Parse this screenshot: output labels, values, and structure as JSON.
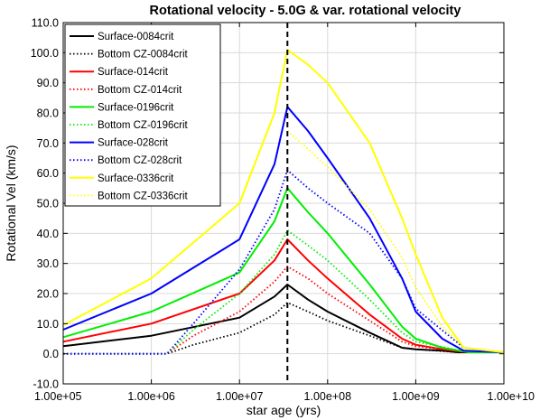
{
  "chart_data": {
    "type": "line",
    "title": "Rotational velocity - 5.0G & var. rotational velocity",
    "xlabel": "star age (yrs)",
    "ylabel": "Rotational Vel (km/s)",
    "x_scale": "log",
    "xlim": [
      100000,
      10000000000
    ],
    "ylim": [
      -10,
      110
    ],
    "x_ticks": [
      100000,
      1000000,
      10000000,
      100000000,
      1000000000,
      10000000000
    ],
    "x_tick_labels": [
      "1.00e+05",
      "1.00e+06",
      "1.00e+07",
      "1.00e+08",
      "1.00e+09",
      "1.00e+10"
    ],
    "y_ticks": [
      -10,
      0,
      10,
      20,
      30,
      40,
      50,
      60,
      70,
      80,
      90,
      100,
      110
    ],
    "y_tick_labels": [
      "-10.0",
      "0.0",
      "10.0",
      "20.0",
      "30.0",
      "40.0",
      "50.0",
      "60.0",
      "70.0",
      "80.0",
      "90.0",
      "100.0",
      "110.0"
    ],
    "grid": true,
    "legend_position": "top-left",
    "vline": {
      "x": 35000000,
      "style": "dashed",
      "color": "#000000"
    },
    "series": [
      {
        "name": "Surface-0084crit",
        "color": "#000000",
        "style": "solid",
        "x": [
          100000,
          1000000,
          10000000,
          25000000,
          35000000,
          60000000,
          100000000,
          300000000,
          700000000,
          1000000000,
          2000000000,
          3000000000,
          10000000000
        ],
        "y": [
          2.5,
          6,
          12,
          19,
          23,
          18,
          14,
          7,
          2,
          1.5,
          1,
          0.5,
          0.5
        ]
      },
      {
        "name": "Bottom CZ-0084crit",
        "color": "#000000",
        "style": "dotted",
        "x": [
          100000,
          1500000,
          3000000,
          10000000,
          25000000,
          35000000,
          60000000,
          100000000,
          300000000,
          700000000,
          1000000000,
          3000000000,
          10000000000
        ],
        "y": [
          0,
          0,
          3,
          7,
          13,
          17,
          14,
          11,
          6,
          2,
          1.5,
          0.5,
          0.5
        ]
      },
      {
        "name": "Surface-014crit",
        "color": "#ff0000",
        "style": "solid",
        "x": [
          100000,
          1000000,
          10000000,
          25000000,
          35000000,
          60000000,
          100000000,
          300000000,
          700000000,
          1000000000,
          2000000000,
          4000000000,
          10000000000
        ],
        "y": [
          4,
          10,
          20,
          31,
          38,
          31,
          25,
          13,
          5,
          3,
          1.5,
          0.5,
          0.5
        ]
      },
      {
        "name": "Bottom CZ-014crit",
        "color": "#ff0000",
        "style": "dotted",
        "x": [
          100000,
          1500000,
          3000000,
          10000000,
          25000000,
          35000000,
          60000000,
          100000000,
          300000000,
          700000000,
          1000000000,
          4000000000,
          10000000000
        ],
        "y": [
          0,
          0,
          6,
          14,
          24,
          29,
          25,
          20,
          11,
          4,
          2.5,
          0.5,
          0.5
        ]
      },
      {
        "name": "Surface-0196crit",
        "color": "#00ee00",
        "style": "solid",
        "x": [
          100000,
          1000000,
          10000000,
          25000000,
          35000000,
          60000000,
          100000000,
          300000000,
          700000000,
          1000000000,
          2000000000,
          4000000000,
          10000000000
        ],
        "y": [
          5.5,
          14,
          27,
          44,
          55,
          47,
          40,
          23,
          9,
          5,
          2,
          0.5,
          0.5
        ]
      },
      {
        "name": "Bottom CZ-0196crit",
        "color": "#00ee00",
        "style": "dotted",
        "x": [
          100000,
          1500000,
          3000000,
          10000000,
          25000000,
          35000000,
          60000000,
          100000000,
          300000000,
          700000000,
          1000000000,
          4000000000,
          10000000000
        ],
        "y": [
          0,
          0,
          8,
          20,
          33,
          41,
          36,
          31,
          18,
          7,
          4,
          0.5,
          0.5
        ]
      },
      {
        "name": "Surface-028crit",
        "color": "#0000ff",
        "style": "solid",
        "x": [
          100000,
          1000000,
          10000000,
          25000000,
          35000000,
          60000000,
          100000000,
          300000000,
          700000000,
          1000000000,
          2000000000,
          3500000000,
          10000000000
        ],
        "y": [
          8,
          20,
          38,
          63,
          82,
          74,
          65,
          45,
          25,
          14,
          5,
          1,
          0.5
        ]
      },
      {
        "name": "Bottom CZ-028crit",
        "color": "#0000ff",
        "style": "dotted",
        "x": [
          100000,
          1500000,
          3000000,
          10000000,
          25000000,
          35000000,
          60000000,
          100000000,
          300000000,
          700000000,
          1000000000,
          3500000000,
          10000000000
        ],
        "y": [
          0,
          0,
          10,
          28,
          48,
          61,
          55,
          50,
          40,
          25,
          15,
          2,
          0.5
        ]
      },
      {
        "name": "Surface-0336crit",
        "color": "#ffff00",
        "style": "solid",
        "x": [
          100000,
          1000000,
          10000000,
          25000000,
          35000000,
          60000000,
          100000000,
          300000000,
          700000000,
          1000000000,
          2000000000,
          3500000000,
          10000000000
        ],
        "y": [
          9.5,
          25,
          50,
          80,
          101,
          96,
          90,
          70,
          45,
          33,
          12,
          2,
          0.5
        ]
      },
      {
        "name": "Bottom CZ-0336crit",
        "color": "#ffff00",
        "style": "dotted",
        "x": [
          35000000,
          60000000,
          100000000,
          300000000,
          700000000,
          1000000000,
          2000000000,
          3500000000,
          10000000000
        ],
        "y": [
          74,
          68,
          62,
          48,
          32,
          22,
          9,
          2,
          0.5
        ]
      }
    ]
  }
}
